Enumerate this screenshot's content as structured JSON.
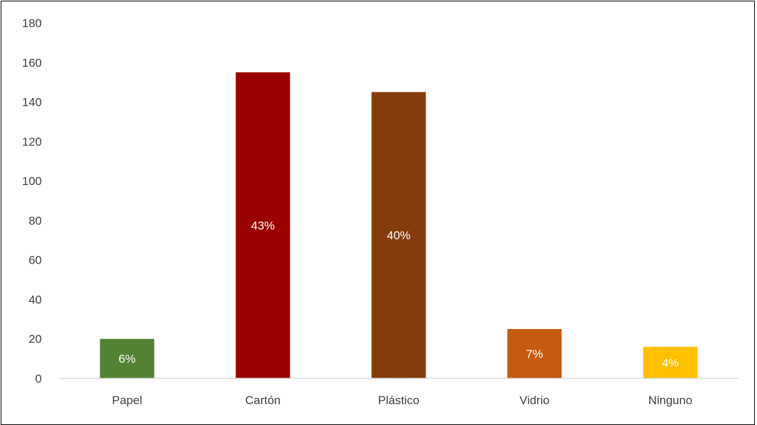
{
  "chart_data": {
    "type": "bar",
    "title": "",
    "xlabel": "",
    "ylabel": "",
    "categories": [
      "Papel",
      "Cartón",
      "Plástico",
      "Vidrio",
      "Ninguno"
    ],
    "values": [
      20,
      155,
      145,
      25,
      16
    ],
    "data_labels": [
      "6%",
      "43%",
      "40%",
      "7%",
      "4%"
    ],
    "colors": [
      "#548235",
      "#9A0000",
      "#843C0C",
      "#C55A11",
      "#FFC000"
    ],
    "ylim": [
      0,
      180
    ],
    "yticks": [
      0,
      20,
      40,
      60,
      80,
      100,
      120,
      140,
      160,
      180
    ],
    "grid": false,
    "legend": "none"
  }
}
